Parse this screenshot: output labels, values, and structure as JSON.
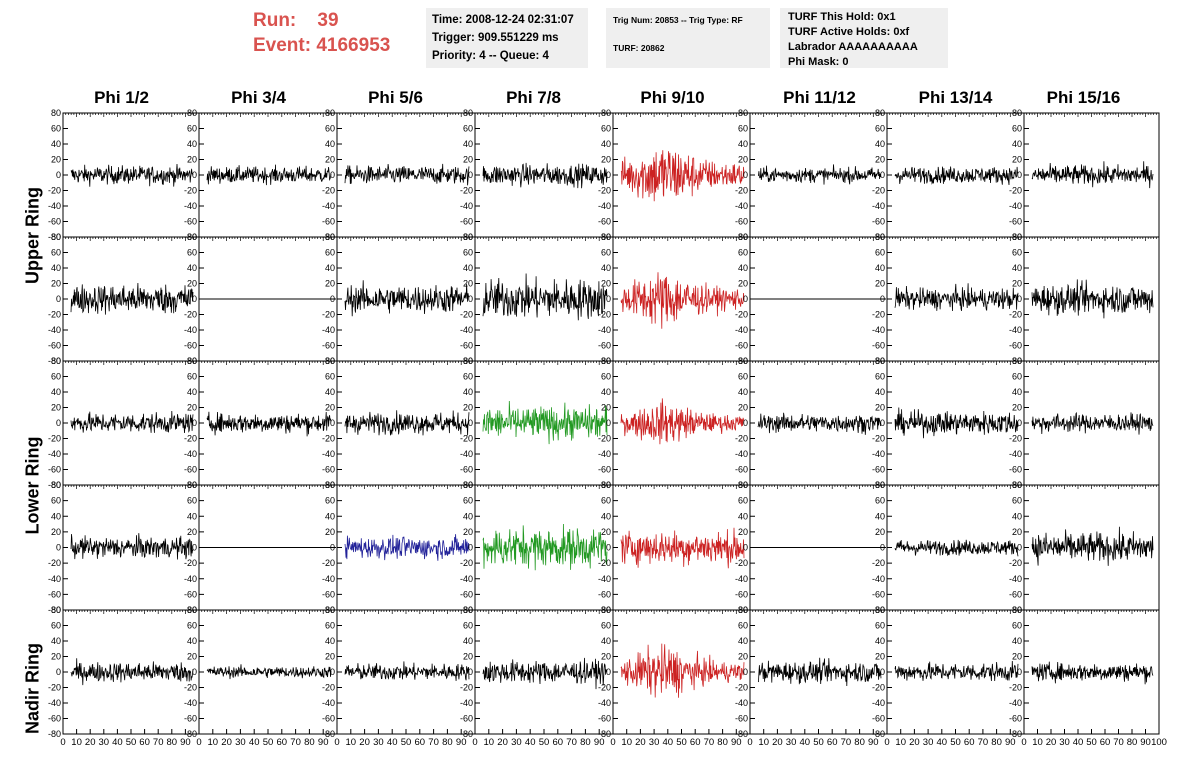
{
  "header": {
    "run_label": "Run:",
    "run_value": "39",
    "event_label": "Event:",
    "event_value": "4166953"
  },
  "info_time": {
    "time": "Time: 2008-12-24 02:31:07",
    "trigger": "Trigger: 909.551229 ms",
    "priority": "Priority: 4 -- Queue: 4"
  },
  "info_trig": {
    "trig": "Trig Num: 20853 -- Trig Type: RF",
    "turf": "TURF: 20862"
  },
  "info_turf": {
    "hold": "TURF This Hold: 0x1",
    "active": "TURF Active Holds: 0xf",
    "labrador": "Labrador AAAAAAAAAA",
    "mask": "Phi Mask: 0"
  },
  "columns": [
    "Phi 1/2",
    "Phi 3/4",
    "Phi 5/6",
    "Phi 7/8",
    "Phi 9/10",
    "Phi 11/12",
    "Phi 13/14",
    "Phi 15/16"
  ],
  "rings": [
    "Upper Ring",
    "Lower Ring",
    "Nadir Ring"
  ],
  "chart_data": {
    "type": "line",
    "x_range": [
      0,
      100
    ],
    "y_range": [
      -80,
      80
    ],
    "y_ticks": [
      -80,
      -60,
      -40,
      -20,
      0,
      20,
      40,
      60,
      80
    ],
    "x_tick_labels": [
      "0",
      "10",
      "20",
      "30",
      "40",
      "50",
      "60",
      "70",
      "80",
      "90",
      "100"
    ],
    "colors": {
      "black": "#000000",
      "red": "#cc2222",
      "green": "#229922",
      "blue": "#222299"
    },
    "panels": [
      [
        {
          "color": "black",
          "amp": 11,
          "flat": false
        },
        {
          "color": "black",
          "amp": 10,
          "flat": false
        },
        {
          "color": "black",
          "amp": 11,
          "flat": false
        },
        {
          "color": "black",
          "amp": 13,
          "flat": false
        },
        {
          "color": "red",
          "amp": 28,
          "flat": false
        },
        {
          "color": "black",
          "amp": 9,
          "flat": false
        },
        {
          "color": "black",
          "amp": 10,
          "flat": false
        },
        {
          "color": "black",
          "amp": 12,
          "flat": false
        }
      ],
      [
        {
          "color": "black",
          "amp": 18,
          "flat": false
        },
        {
          "color": "black",
          "amp": 0,
          "flat": true
        },
        {
          "color": "black",
          "amp": 17,
          "flat": false
        },
        {
          "color": "black",
          "amp": 24,
          "flat": false
        },
        {
          "color": "red",
          "amp": 24,
          "flat": false
        },
        {
          "color": "black",
          "amp": 0,
          "flat": true
        },
        {
          "color": "black",
          "amp": 13,
          "flat": false
        },
        {
          "color": "black",
          "amp": 18,
          "flat": false
        }
      ],
      [
        {
          "color": "black",
          "amp": 12,
          "flat": false
        },
        {
          "color": "black",
          "amp": 12,
          "flat": false
        },
        {
          "color": "black",
          "amp": 13,
          "flat": false
        },
        {
          "color": "green",
          "amp": 20,
          "flat": false
        },
        {
          "color": "red",
          "amp": 18,
          "flat": false
        },
        {
          "color": "black",
          "amp": 11,
          "flat": false
        },
        {
          "color": "black",
          "amp": 14,
          "flat": false
        },
        {
          "color": "black",
          "amp": 11,
          "flat": false
        }
      ],
      [
        {
          "color": "black",
          "amp": 13,
          "flat": false
        },
        {
          "color": "black",
          "amp": 0,
          "flat": true
        },
        {
          "color": "blue",
          "amp": 13,
          "flat": false
        },
        {
          "color": "green",
          "amp": 24,
          "flat": false
        },
        {
          "color": "red",
          "amp": 20,
          "flat": false
        },
        {
          "color": "black",
          "amp": 0,
          "flat": true
        },
        {
          "color": "black",
          "amp": 9,
          "flat": false
        },
        {
          "color": "black",
          "amp": 18,
          "flat": false
        }
      ],
      [
        {
          "color": "black",
          "amp": 12,
          "flat": false
        },
        {
          "color": "black",
          "amp": 7,
          "flat": false
        },
        {
          "color": "black",
          "amp": 10,
          "flat": false
        },
        {
          "color": "black",
          "amp": 14,
          "flat": false
        },
        {
          "color": "red",
          "amp": 22,
          "flat": false
        },
        {
          "color": "black",
          "amp": 13,
          "flat": false
        },
        {
          "color": "black",
          "amp": 11,
          "flat": false
        },
        {
          "color": "black",
          "amp": 11,
          "flat": false
        }
      ]
    ]
  }
}
